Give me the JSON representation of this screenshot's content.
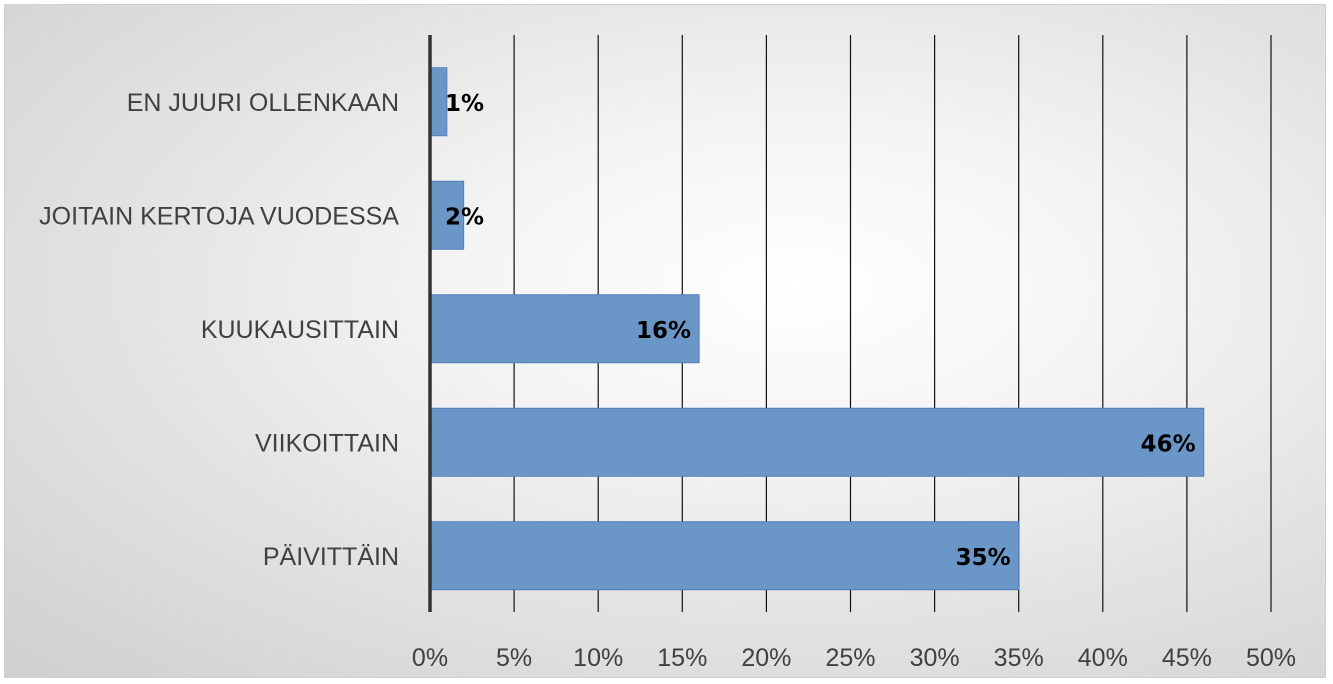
{
  "chart_data": {
    "type": "bar",
    "orientation": "horizontal",
    "categories": [
      "EN JUURI OLLENKAAN",
      "JOITAIN KERTOJA VUODESSA",
      "KUUKAUSITTAIN",
      "VIIKOITTAIN",
      "PÄIVITTÄIN"
    ],
    "values": [
      1,
      2,
      16,
      46,
      35
    ],
    "data_labels": [
      "1%",
      "2%",
      "16%",
      "46%",
      "35%"
    ],
    "x_ticks": [
      "0%",
      "5%",
      "10%",
      "15%",
      "20%",
      "25%",
      "30%",
      "35%",
      "40%",
      "45%",
      "50%"
    ],
    "xlim": [
      0,
      50
    ],
    "x_tick_step": 5,
    "grid": "vertical",
    "legend": "none",
    "title": "",
    "xlabel": "",
    "ylabel": "",
    "colors": {
      "bar": "#6b96c8",
      "bar_edge": "#4f7fb8",
      "gridline": "#111111",
      "axis": "#333333"
    }
  }
}
